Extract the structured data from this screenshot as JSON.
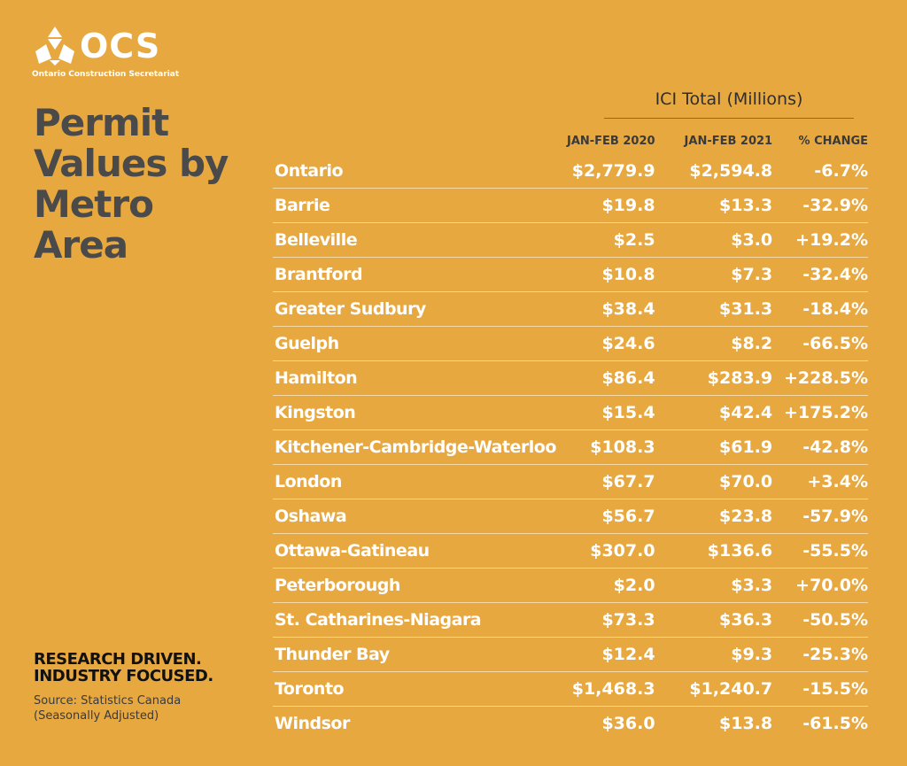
{
  "brand": {
    "logo_text": "OCS",
    "logo_subtitle": "Ontario Construction Secretariat",
    "title_lines": [
      "Permit",
      "Values by",
      "Metro Area"
    ],
    "tagline_lines": [
      "RESEARCH DRIVEN.",
      "INDUSTRY FOCUSED."
    ],
    "source_lines": [
      "Source: Statistics Canada",
      "(Seasonally Adjusted)"
    ]
  },
  "colors": {
    "background": "#E8A840",
    "title": "#4A4A4A",
    "cell_text": "#FFFFFF",
    "row_rule": "#F4D9A6"
  },
  "chart_data": {
    "type": "table",
    "title": "ICI Total (Millions)",
    "columns": [
      "",
      "JAN-FEB 2020",
      "JAN-FEB 2021",
      "% CHANGE"
    ],
    "rows": [
      [
        "Ontario",
        "$2,779.9",
        "$2,594.8",
        "-6.7%"
      ],
      [
        "Barrie",
        "$19.8",
        "$13.3",
        "-32.9%"
      ],
      [
        "Belleville",
        "$2.5",
        "$3.0",
        "+19.2%"
      ],
      [
        "Brantford",
        "$10.8",
        "$7.3",
        "-32.4%"
      ],
      [
        "Greater Sudbury",
        "$38.4",
        "$31.3",
        "-18.4%"
      ],
      [
        "Guelph",
        "$24.6",
        "$8.2",
        "-66.5%"
      ],
      [
        "Hamilton",
        "$86.4",
        "$283.9",
        "+228.5%"
      ],
      [
        "Kingston",
        "$15.4",
        "$42.4",
        "+175.2%"
      ],
      [
        "Kitchener-Cambridge-Waterloo",
        "$108.3",
        "$61.9",
        "-42.8%"
      ],
      [
        "London",
        "$67.7",
        "$70.0",
        "+3.4%"
      ],
      [
        "Oshawa",
        "$56.7",
        "$23.8",
        "-57.9%"
      ],
      [
        "Ottawa-Gatineau",
        "$307.0",
        "$136.6",
        "-55.5%"
      ],
      [
        "Peterborough",
        "$2.0",
        "$3.3",
        "+70.0%"
      ],
      [
        "St. Catharines-Niagara",
        "$73.3",
        "$36.3",
        "-50.5%"
      ],
      [
        "Thunder Bay",
        "$12.4",
        "$9.3",
        "-25.3%"
      ],
      [
        "Toronto",
        "$1,468.3",
        "$1,240.7",
        "-15.5%"
      ],
      [
        "Windsor",
        "$36.0",
        "$13.8",
        "-61.5%"
      ]
    ]
  }
}
